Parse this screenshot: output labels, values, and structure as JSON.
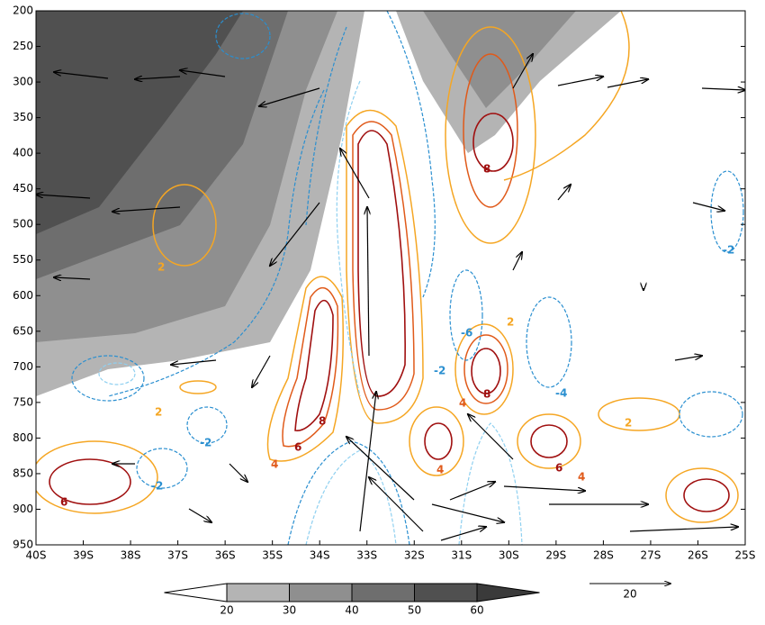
{
  "chart_data": {
    "type": "contour",
    "ylim": [
      200,
      950
    ],
    "yticks": [
      200,
      250,
      300,
      350,
      400,
      450,
      500,
      550,
      600,
      650,
      700,
      750,
      800,
      850,
      900,
      950
    ],
    "xlim": [
      -40,
      -25
    ],
    "xticks": [
      {
        "value": -40,
        "label": "40S"
      },
      {
        "value": -39,
        "label": "39S"
      },
      {
        "value": -38,
        "label": "38S"
      },
      {
        "value": -37,
        "label": "37S"
      },
      {
        "value": -36,
        "label": "36S"
      },
      {
        "value": -35,
        "label": "35S"
      },
      {
        "value": -34,
        "label": "34S"
      },
      {
        "value": -33,
        "label": "33S"
      },
      {
        "value": -32,
        "label": "32S"
      },
      {
        "value": -31,
        "label": "31S"
      },
      {
        "value": -30,
        "label": "30S"
      },
      {
        "value": -29,
        "label": "29S"
      },
      {
        "value": -28,
        "label": "28S"
      },
      {
        "value": -27,
        "label": "27S"
      },
      {
        "value": -26,
        "label": "26S"
      },
      {
        "value": -25,
        "label": "25S"
      }
    ],
    "colorbar": {
      "levels": [
        20,
        30,
        40,
        50,
        60
      ],
      "colors": [
        "#ffffff",
        "#b4b4b4",
        "#8f8f8f",
        "#6e6e6e",
        "#505050",
        "#3a3a3a"
      ]
    },
    "reference_vector": 20,
    "contour_labels": [
      2,
      -2,
      8,
      -2,
      -6,
      2,
      8,
      -4,
      2,
      -2,
      8,
      6,
      4,
      2,
      4,
      4,
      6,
      4,
      -2,
      6
    ]
  }
}
